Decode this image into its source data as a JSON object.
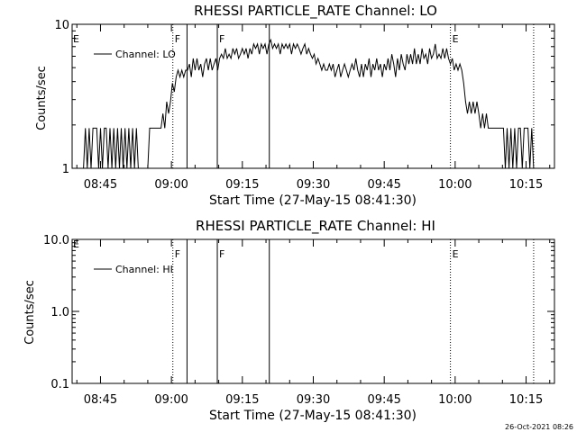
{
  "footer": {
    "timestamp": "26-Oct-2021 08:26"
  },
  "chart_data": [
    {
      "type": "line",
      "title": "RHESSI PARTICLE_RATE Channel: LO",
      "xlabel": "Start Time (27-May-15 08:41:30)",
      "ylabel": "Counts/sec",
      "yscale": "log",
      "ylim": [
        1,
        10
      ],
      "yticks": [
        "1",
        "10"
      ],
      "xlim_minutes": [
        -6,
        96
      ],
      "xticks": [
        {
          "label": "08:45",
          "m": 0
        },
        {
          "label": "09:00",
          "m": 15
        },
        {
          "label": "09:15",
          "m": 30
        },
        {
          "label": "09:30",
          "m": 45
        },
        {
          "label": "09:45",
          "m": 60
        },
        {
          "label": "10:00",
          "m": 75
        },
        {
          "label": "10:15",
          "m": 90
        }
      ],
      "legend": {
        "label": "Channel: LO",
        "position": "top-left"
      },
      "markers": [
        {
          "m": 15.3,
          "style": "dotted",
          "label": "F"
        },
        {
          "m": 18.3,
          "style": "solid",
          "label": ""
        },
        {
          "m": 24.7,
          "style": "solid",
          "label": "F"
        },
        {
          "m": 35.7,
          "style": "solid",
          "label": ""
        },
        {
          "m": 74.0,
          "style": "dotted",
          "label": "E"
        },
        {
          "m": 91.6,
          "style": "dotted",
          "label": ""
        }
      ],
      "edge_label": "E",
      "series": [
        {
          "values": [
            [
              -6.0,
              1.0
            ],
            [
              -5.0,
              1.0
            ],
            [
              -4.5,
              1.0
            ],
            [
              -4.0,
              1.0
            ],
            [
              -3.6,
              1.0
            ],
            [
              -3.2,
              1.9
            ],
            [
              -2.8,
              1.0
            ],
            [
              -2.4,
              1.9
            ],
            [
              -2.0,
              1.0
            ],
            [
              -1.6,
              1.9
            ],
            [
              -1.2,
              1.9
            ],
            [
              -0.8,
              1.9
            ],
            [
              -0.4,
              1.0
            ],
            [
              0.0,
              1.9
            ],
            [
              0.4,
              1.0
            ],
            [
              0.8,
              1.9
            ],
            [
              1.2,
              1.9
            ],
            [
              1.6,
              1.0
            ],
            [
              2.0,
              1.9
            ],
            [
              2.4,
              1.0
            ],
            [
              2.8,
              1.9
            ],
            [
              3.2,
              1.0
            ],
            [
              3.6,
              1.9
            ],
            [
              4.0,
              1.0
            ],
            [
              4.4,
              1.9
            ],
            [
              4.8,
              1.0
            ],
            [
              5.2,
              1.9
            ],
            [
              5.6,
              1.0
            ],
            [
              6.0,
              1.9
            ],
            [
              6.4,
              1.0
            ],
            [
              6.8,
              1.9
            ],
            [
              7.2,
              1.0
            ],
            [
              7.6,
              1.9
            ],
            [
              8.0,
              1.0
            ],
            [
              8.4,
              1.0
            ],
            [
              8.8,
              1.0
            ],
            [
              9.2,
              1.0
            ],
            [
              9.6,
              1.0
            ],
            [
              10.0,
              1.0
            ],
            [
              10.4,
              1.9
            ],
            [
              11.0,
              1.9
            ],
            [
              11.6,
              1.9
            ],
            [
              12.2,
              1.9
            ],
            [
              12.8,
              1.9
            ],
            [
              13.2,
              2.4
            ],
            [
              13.6,
              1.9
            ],
            [
              14.0,
              2.9
            ],
            [
              14.4,
              2.4
            ],
            [
              14.8,
              2.9
            ],
            [
              15.2,
              3.9
            ],
            [
              15.6,
              3.4
            ],
            [
              16.0,
              4.3
            ],
            [
              16.4,
              4.8
            ],
            [
              16.8,
              4.3
            ],
            [
              17.2,
              4.8
            ],
            [
              17.6,
              4.3
            ],
            [
              18.0,
              4.8
            ],
            [
              18.4,
              4.8
            ],
            [
              18.8,
              5.3
            ],
            [
              19.2,
              4.3
            ],
            [
              19.6,
              5.8
            ],
            [
              20.0,
              4.8
            ],
            [
              20.4,
              5.8
            ],
            [
              20.8,
              4.8
            ],
            [
              21.2,
              5.3
            ],
            [
              21.6,
              4.3
            ],
            [
              22.0,
              5.3
            ],
            [
              22.4,
              5.8
            ],
            [
              22.8,
              4.8
            ],
            [
              23.2,
              5.8
            ],
            [
              23.6,
              4.8
            ],
            [
              24.0,
              5.3
            ],
            [
              24.4,
              5.8
            ],
            [
              24.8,
              4.8
            ],
            [
              25.2,
              5.8
            ],
            [
              25.6,
              6.2
            ],
            [
              26.0,
              5.8
            ],
            [
              26.4,
              6.8
            ],
            [
              26.8,
              5.8
            ],
            [
              27.2,
              6.2
            ],
            [
              27.6,
              5.8
            ],
            [
              28.0,
              6.8
            ],
            [
              28.4,
              6.2
            ],
            [
              28.8,
              6.8
            ],
            [
              29.2,
              5.8
            ],
            [
              29.6,
              6.2
            ],
            [
              30.0,
              6.8
            ],
            [
              30.4,
              6.2
            ],
            [
              30.8,
              6.8
            ],
            [
              31.2,
              5.8
            ],
            [
              31.6,
              6.8
            ],
            [
              32.0,
              6.2
            ],
            [
              32.4,
              7.3
            ],
            [
              32.8,
              6.8
            ],
            [
              33.2,
              7.3
            ],
            [
              33.6,
              6.2
            ],
            [
              34.0,
              7.3
            ],
            [
              34.4,
              6.8
            ],
            [
              34.8,
              7.3
            ],
            [
              35.2,
              6.2
            ],
            [
              35.6,
              7.3
            ],
            [
              36.0,
              7.8
            ],
            [
              36.4,
              6.8
            ],
            [
              36.8,
              7.3
            ],
            [
              37.2,
              6.8
            ],
            [
              37.6,
              7.3
            ],
            [
              38.0,
              6.2
            ],
            [
              38.4,
              7.3
            ],
            [
              38.8,
              6.8
            ],
            [
              39.2,
              7.3
            ],
            [
              39.6,
              6.8
            ],
            [
              40.0,
              7.3
            ],
            [
              40.4,
              6.2
            ],
            [
              40.8,
              7.3
            ],
            [
              41.2,
              6.8
            ],
            [
              41.6,
              7.3
            ],
            [
              42.0,
              6.8
            ],
            [
              42.4,
              6.2
            ],
            [
              42.8,
              6.8
            ],
            [
              43.2,
              7.3
            ],
            [
              43.6,
              6.2
            ],
            [
              44.0,
              6.8
            ],
            [
              44.4,
              6.2
            ],
            [
              44.8,
              5.8
            ],
            [
              45.2,
              6.2
            ],
            [
              45.6,
              5.3
            ],
            [
              46.0,
              5.8
            ],
            [
              46.4,
              5.3
            ],
            [
              46.8,
              4.8
            ],
            [
              47.2,
              5.3
            ],
            [
              47.6,
              4.8
            ],
            [
              48.0,
              4.8
            ],
            [
              48.4,
              5.3
            ],
            [
              48.8,
              4.8
            ],
            [
              49.2,
              5.3
            ],
            [
              49.6,
              4.3
            ],
            [
              50.0,
              4.8
            ],
            [
              50.4,
              5.3
            ],
            [
              50.8,
              4.3
            ],
            [
              51.2,
              4.8
            ],
            [
              51.6,
              5.3
            ],
            [
              52.0,
              4.8
            ],
            [
              52.4,
              4.3
            ],
            [
              52.8,
              4.8
            ],
            [
              53.2,
              5.3
            ],
            [
              53.6,
              4.8
            ],
            [
              54.0,
              5.8
            ],
            [
              54.4,
              4.8
            ],
            [
              54.8,
              4.3
            ],
            [
              55.2,
              5.3
            ],
            [
              55.6,
              4.3
            ],
            [
              56.0,
              5.3
            ],
            [
              56.4,
              4.8
            ],
            [
              56.8,
              5.8
            ],
            [
              57.2,
              4.3
            ],
            [
              57.6,
              5.3
            ],
            [
              58.0,
              4.8
            ],
            [
              58.4,
              5.8
            ],
            [
              58.8,
              4.8
            ],
            [
              59.2,
              5.3
            ],
            [
              59.6,
              4.3
            ],
            [
              60.0,
              5.3
            ],
            [
              60.4,
              4.8
            ],
            [
              60.8,
              5.8
            ],
            [
              61.2,
              4.8
            ],
            [
              61.6,
              6.2
            ],
            [
              62.0,
              5.3
            ],
            [
              62.4,
              4.3
            ],
            [
              62.8,
              5.8
            ],
            [
              63.2,
              4.8
            ],
            [
              63.6,
              6.2
            ],
            [
              64.0,
              5.3
            ],
            [
              64.4,
              4.8
            ],
            [
              64.8,
              6.2
            ],
            [
              65.2,
              5.3
            ],
            [
              65.6,
              6.2
            ],
            [
              66.0,
              5.3
            ],
            [
              66.4,
              6.8
            ],
            [
              66.8,
              5.3
            ],
            [
              67.2,
              6.2
            ],
            [
              67.6,
              5.3
            ],
            [
              68.0,
              6.8
            ],
            [
              68.4,
              5.8
            ],
            [
              68.8,
              6.2
            ],
            [
              69.2,
              5.3
            ],
            [
              69.6,
              6.8
            ],
            [
              70.0,
              5.8
            ],
            [
              70.4,
              6.2
            ],
            [
              70.8,
              7.3
            ],
            [
              71.2,
              5.8
            ],
            [
              71.6,
              6.2
            ],
            [
              72.0,
              5.8
            ],
            [
              72.4,
              6.8
            ],
            [
              72.8,
              5.8
            ],
            [
              73.2,
              6.8
            ],
            [
              73.6,
              5.8
            ],
            [
              74.0,
              5.3
            ],
            [
              74.4,
              5.8
            ],
            [
              74.8,
              4.8
            ],
            [
              75.2,
              5.3
            ],
            [
              75.6,
              4.8
            ],
            [
              76.0,
              5.3
            ],
            [
              76.4,
              4.8
            ],
            [
              76.8,
              3.9
            ],
            [
              77.2,
              2.9
            ],
            [
              77.6,
              2.4
            ],
            [
              78.0,
              2.9
            ],
            [
              78.4,
              2.4
            ],
            [
              78.8,
              2.9
            ],
            [
              79.2,
              2.4
            ],
            [
              79.6,
              2.9
            ],
            [
              80.0,
              2.4
            ],
            [
              80.4,
              1.9
            ],
            [
              80.8,
              2.4
            ],
            [
              81.2,
              1.9
            ],
            [
              81.6,
              2.4
            ],
            [
              82.0,
              1.9
            ],
            [
              82.4,
              1.9
            ],
            [
              82.8,
              1.9
            ],
            [
              83.2,
              1.9
            ],
            [
              83.6,
              1.9
            ],
            [
              84.0,
              1.9
            ],
            [
              84.4,
              1.9
            ],
            [
              84.8,
              1.9
            ],
            [
              85.2,
              1.9
            ],
            [
              85.6,
              1.0
            ],
            [
              86.0,
              1.9
            ],
            [
              86.4,
              1.0
            ],
            [
              86.8,
              1.9
            ],
            [
              87.2,
              1.0
            ],
            [
              87.6,
              1.9
            ],
            [
              88.0,
              1.0
            ],
            [
              88.4,
              1.9
            ],
            [
              88.8,
              1.9
            ],
            [
              89.2,
              1.0
            ],
            [
              89.6,
              1.9
            ],
            [
              90.0,
              1.9
            ],
            [
              90.4,
              1.9
            ],
            [
              90.8,
              1.0
            ],
            [
              91.2,
              1.9
            ],
            [
              91.6,
              1.0
            ],
            [
              92.0,
              1.0
            ]
          ]
        }
      ]
    },
    {
      "type": "line",
      "title": "RHESSI PARTICLE_RATE Channel: HI",
      "xlabel": "Start Time (27-May-15 08:41:30)",
      "ylabel": "Counts/sec",
      "yscale": "log",
      "ylim": [
        0.1,
        10
      ],
      "yticks": [
        "0.1",
        "1.0",
        "10.0"
      ],
      "xlim_minutes": [
        -6,
        96
      ],
      "xticks": [
        {
          "label": "08:45",
          "m": 0
        },
        {
          "label": "09:00",
          "m": 15
        },
        {
          "label": "09:15",
          "m": 30
        },
        {
          "label": "09:30",
          "m": 45
        },
        {
          "label": "09:45",
          "m": 60
        },
        {
          "label": "10:00",
          "m": 75
        },
        {
          "label": "10:15",
          "m": 90
        }
      ],
      "legend": {
        "label": "Channel: HI",
        "position": "top-left"
      },
      "markers": [
        {
          "m": 15.3,
          "style": "dotted",
          "label": "F"
        },
        {
          "m": 18.3,
          "style": "solid",
          "label": ""
        },
        {
          "m": 24.7,
          "style": "solid",
          "label": "F"
        },
        {
          "m": 35.7,
          "style": "solid",
          "label": ""
        },
        {
          "m": 74.0,
          "style": "dotted",
          "label": "E"
        },
        {
          "m": 91.6,
          "style": "dotted",
          "label": ""
        }
      ],
      "edge_label": "E",
      "series": [
        {
          "values": []
        }
      ]
    }
  ]
}
